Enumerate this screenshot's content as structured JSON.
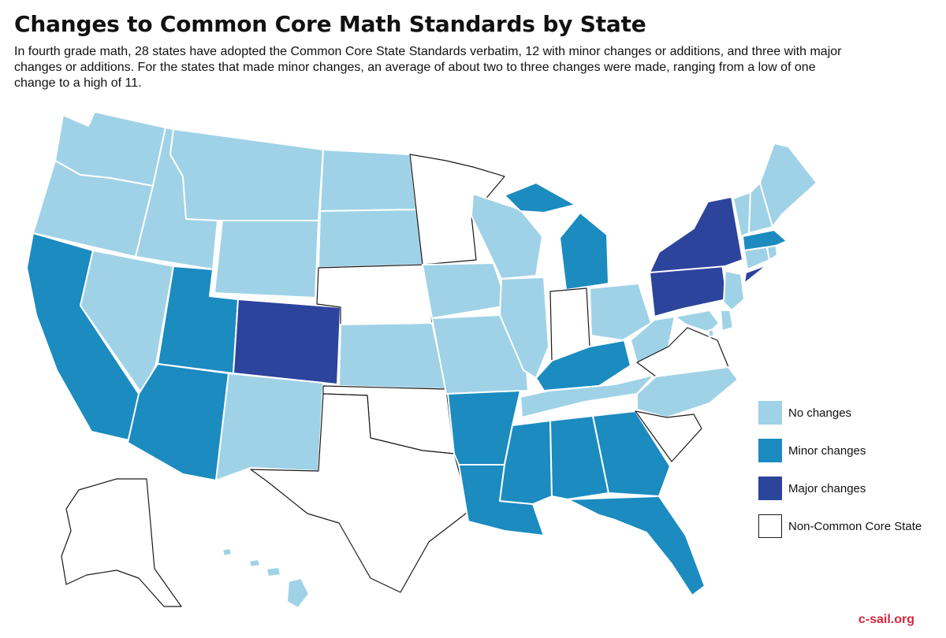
{
  "title": "Changes to Common Core Math Standards by State",
  "subtitle": "In fourth grade math, 28 states have adopted the Common Core State Standards verbatim, 12 with minor changes or additions, and three with major changes or additions. For the states that made minor changes, an average of about two to three changes were made, ranging from a low of one change to a high of 11.",
  "categories": {
    "none": {
      "label": "No changes",
      "color": "#9fd2e7"
    },
    "minor": {
      "label": "Minor changes",
      "color": "#1b8bc0"
    },
    "major": {
      "label": "Major changes",
      "color": "#2c449c"
    },
    "non": {
      "label": "Non-Common Core State",
      "color": "#ffffff"
    }
  },
  "states": {
    "WA": "none",
    "OR": "none",
    "ID": "none",
    "MT": "none",
    "WY": "none",
    "ND": "none",
    "SD": "none",
    "NV": "none",
    "NM": "none",
    "KS": "none",
    "IA": "none",
    "MO": "none",
    "WI": "none",
    "IL": "none",
    "OH": "none",
    "WV": "none",
    "TN": "none",
    "NC": "none",
    "ME": "none",
    "VT": "none",
    "NH": "none",
    "CT": "none",
    "RI": "none",
    "NJ": "none",
    "DE": "none",
    "MD": "none",
    "HI": "none",
    "DC": "none",
    "CA": "minor",
    "UT": "minor",
    "AZ": "minor",
    "AR": "minor",
    "LA": "minor",
    "MS": "minor",
    "AL": "minor",
    "GA": "minor",
    "FL": "minor",
    "KY": "minor",
    "MI": "minor",
    "MA": "minor",
    "CO": "major",
    "NY": "major",
    "PA": "major",
    "MN": "non",
    "NE": "non",
    "OK": "non",
    "TX": "non",
    "IN": "non",
    "VA": "non",
    "SC": "non",
    "AK": "non"
  },
  "source": "c-sail.org"
}
